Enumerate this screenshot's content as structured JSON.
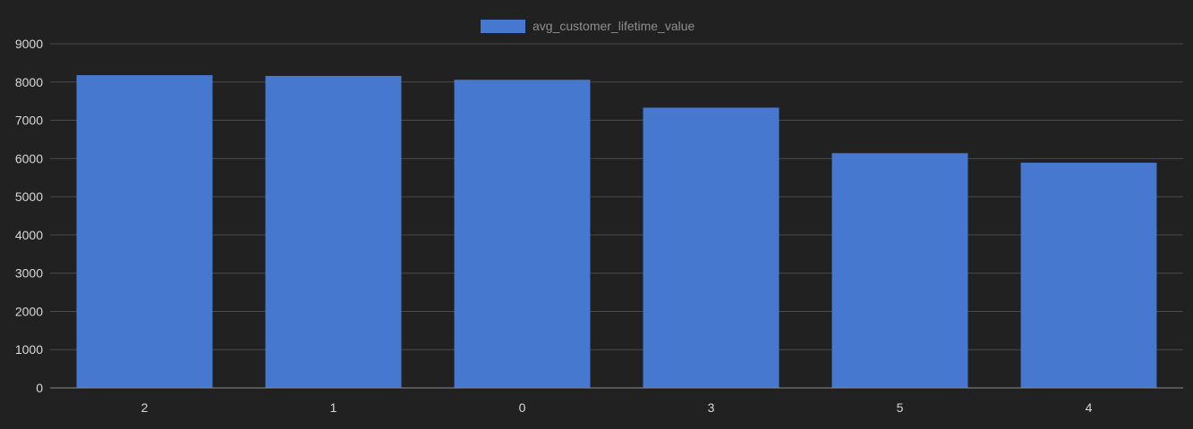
{
  "chart_data": {
    "type": "bar",
    "title": "",
    "xlabel": "",
    "ylabel": "",
    "categories": [
      "2",
      "1",
      "0",
      "3",
      "5",
      "4"
    ],
    "series": [
      {
        "name": "avg_customer_lifetime_value",
        "values": [
          8180,
          8160,
          8060,
          7330,
          6140,
          5890
        ],
        "color": "#4778d0"
      }
    ],
    "ylim": [
      0,
      9000
    ],
    "yticks": [
      "0",
      "1000",
      "2000",
      "3000",
      "4000",
      "5000",
      "6000",
      "7000",
      "8000",
      "9000"
    ],
    "grid": true,
    "legend": "top-center",
    "colors": {
      "background": "#212121",
      "grid": "#4a4a4a",
      "axis": "#8a8a8a",
      "tick_text": "#d9d9d9",
      "legend_text": "#8f8f8f"
    }
  }
}
